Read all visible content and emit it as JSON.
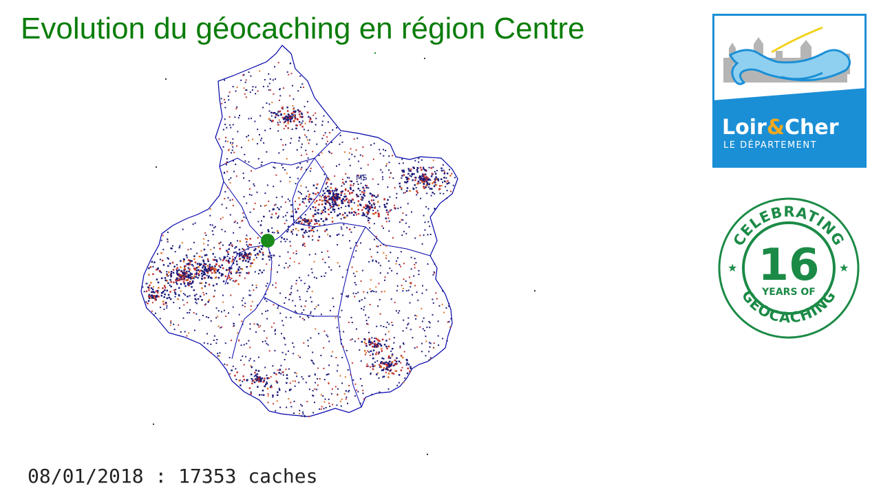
{
  "header": {
    "title": "Evolution du géocaching en région Centre",
    "title_color": "#0a7d0a"
  },
  "footer": {
    "date": "08/01/2018",
    "separator": " : ",
    "count": "17353",
    "unit": "caches"
  },
  "map": {
    "region_outline_color": "#0000aa",
    "cache_colors": [
      "#1a1a7a",
      "#c03030",
      "#e07020"
    ],
    "highlight_color": "#1a8a1a",
    "city_label": "MS"
  },
  "logos": {
    "department": {
      "name_part1": "Loir",
      "ampersand": "&",
      "name_part2": "Cher",
      "subtitle": "LE DÉPARTEMENT",
      "brand_color": "#1b8fd6",
      "accent_color": "#f2a91c"
    },
    "anniversary": {
      "top_text": "CELEBRATING",
      "number": "16",
      "middle_text": "YEARS OF",
      "bottom_text": "GEOCACHING",
      "color": "#1b8a46"
    }
  }
}
